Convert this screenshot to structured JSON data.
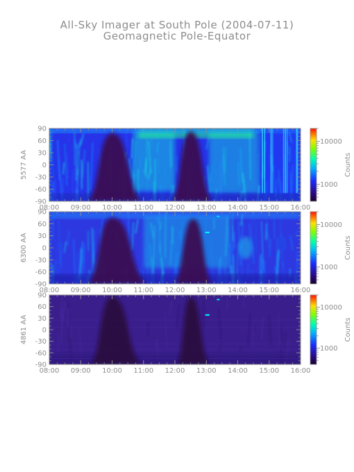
{
  "page": {
    "title": "All-Sky Imager at South Pole (2004-07-11)",
    "subtitle": "Geomagnetic Pole-Equator"
  },
  "chart_data": [
    {
      "type": "heatmap",
      "ylabel": "5577 AA",
      "xlim": [
        "08:00",
        "16:00"
      ],
      "ylim": [
        -90,
        90
      ],
      "x_ticks": [
        "08:00",
        "09:00",
        "10:00",
        "11:00",
        "12:00",
        "13:00",
        "14:00",
        "15:00",
        "16:00"
      ],
      "y_ticks": [
        90,
        60,
        30,
        0,
        -30,
        -60,
        -90
      ],
      "colorbar": {
        "label": "Counts",
        "scale": "log",
        "ticks": [
          10000,
          1000
        ],
        "tick_labels": [
          "10000",
          "1000"
        ],
        "range": [
          400,
          20000
        ]
      },
      "dark_bands": [
        {
          "start": "09:15",
          "peak": "10:00",
          "end": "10:55",
          "top_lat": 78
        },
        {
          "start": "11:55",
          "peak": "12:30",
          "end": "13:10",
          "top_lat": 82
        }
      ],
      "intensity": "high"
    },
    {
      "type": "heatmap",
      "ylabel": "6300 AA",
      "xlim": [
        "08:00",
        "16:00"
      ],
      "ylim": [
        -90,
        90
      ],
      "x_ticks": [
        "08:00",
        "09:00",
        "10:00",
        "11:00",
        "12:00",
        "13:00",
        "14:00",
        "15:00",
        "16:00"
      ],
      "y_ticks": [
        90,
        60,
        30,
        0,
        -30,
        -60,
        -90
      ],
      "colorbar": {
        "label": "Counts",
        "scale": "log",
        "ticks": [
          10000,
          1000
        ],
        "tick_labels": [
          "10000",
          "1000"
        ],
        "range": [
          400,
          20000
        ]
      },
      "dark_bands": [
        {
          "start": "09:15",
          "peak": "10:00",
          "end": "11:05",
          "top_lat": 75
        },
        {
          "start": "12:00",
          "peak": "12:35",
          "end": "13:10",
          "top_lat": 72
        }
      ],
      "intensity": "medium"
    },
    {
      "type": "heatmap",
      "ylabel": "4861 AA",
      "xlim": [
        "08:00",
        "16:00"
      ],
      "ylim": [
        -90,
        90
      ],
      "x_ticks": [
        "08:00",
        "09:00",
        "10:00",
        "11:00",
        "12:00",
        "13:00",
        "14:00",
        "15:00",
        "16:00"
      ],
      "y_ticks": [
        90,
        60,
        30,
        0,
        -30,
        -60,
        -90
      ],
      "colorbar": {
        "label": "Counts",
        "scale": "log",
        "ticks": [
          10000,
          1000
        ],
        "tick_labels": [
          "10000",
          "1000"
        ],
        "range": [
          400,
          20000
        ]
      },
      "dark_bands": [
        {
          "start": "09:20",
          "peak": "10:00",
          "end": "10:55",
          "top_lat": 85
        },
        {
          "start": "12:05",
          "peak": "12:30",
          "end": "13:05",
          "top_lat": 85
        }
      ],
      "intensity": "low"
    }
  ]
}
